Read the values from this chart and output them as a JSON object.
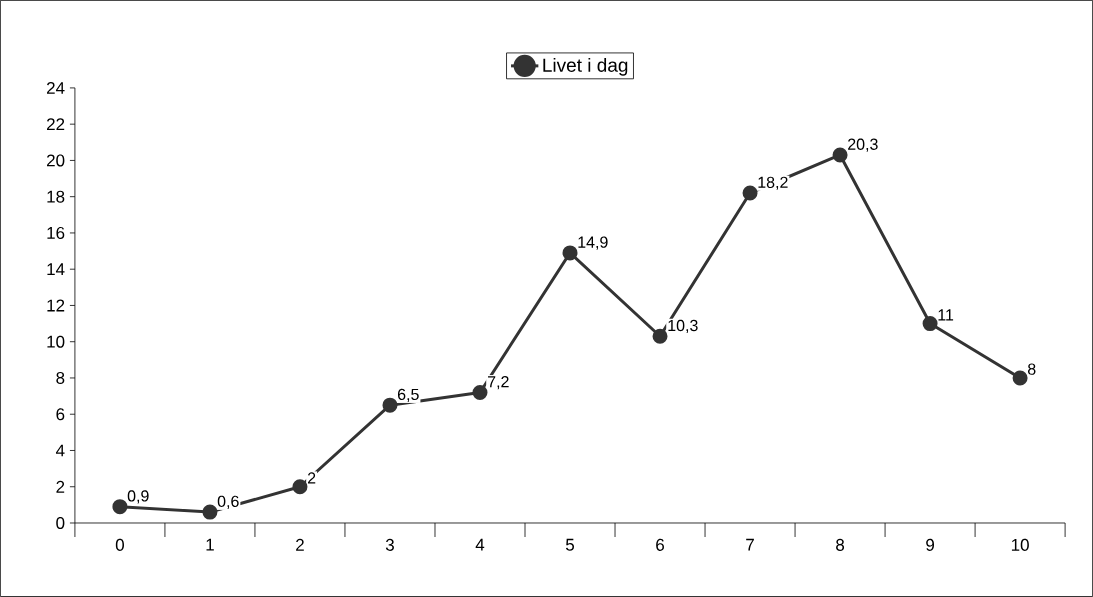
{
  "chart_data": {
    "type": "line",
    "categories": [
      "0",
      "1",
      "2",
      "3",
      "4",
      "5",
      "6",
      "7",
      "8",
      "9",
      "10"
    ],
    "series": [
      {
        "name": "Livet i dag",
        "color": "#333333",
        "values": [
          0.9,
          0.6,
          2,
          6.5,
          7.2,
          14.9,
          10.3,
          18.2,
          20.3,
          11,
          8
        ],
        "value_labels": [
          "0,9",
          "0,6",
          "2",
          "6,5",
          "7,2",
          "14,9",
          "10,3",
          "18,2",
          "20,3",
          "11",
          "8"
        ]
      }
    ],
    "ylim": [
      0,
      24
    ],
    "yticks": [
      0,
      2,
      4,
      6,
      8,
      10,
      12,
      14,
      16,
      18,
      20,
      22,
      24
    ],
    "legend": "top",
    "marker": "circle",
    "line_style": "solid",
    "grid": false
  }
}
